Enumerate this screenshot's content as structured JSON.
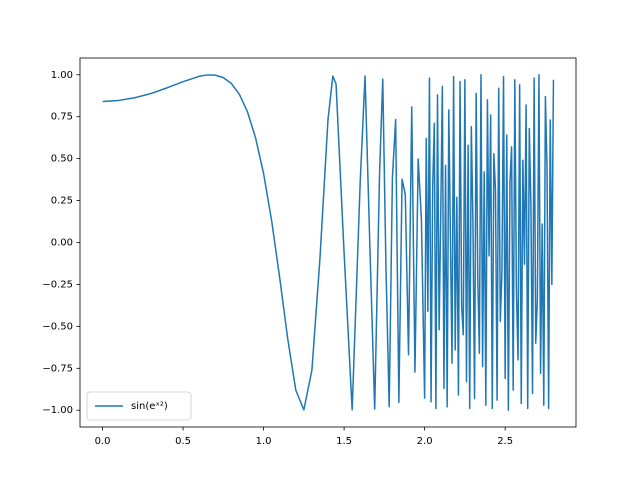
{
  "chart_data": {
    "type": "line",
    "x": [
      0,
      0.1,
      0.2,
      0.3,
      0.4,
      0.5,
      0.6,
      0.65,
      0.7,
      0.75,
      0.8,
      0.85,
      0.9,
      0.95,
      1.0,
      1.05,
      1.1,
      1.15,
      1.2,
      1.25,
      1.3,
      1.35,
      1.4,
      1.43,
      1.45,
      1.5,
      1.55,
      1.6,
      1.63,
      1.66,
      1.69,
      1.72,
      1.74,
      1.76,
      1.78,
      1.8,
      1.82,
      1.84,
      1.86,
      1.88,
      1.9,
      1.92,
      1.94,
      1.96,
      1.98,
      2.0,
      2.01,
      2.02,
      2.03,
      2.04,
      2.05,
      2.06,
      2.07,
      2.08,
      2.09,
      2.1,
      2.11,
      2.12,
      2.13,
      2.14,
      2.15,
      2.16,
      2.17,
      2.18,
      2.19,
      2.2,
      2.21,
      2.22,
      2.23,
      2.24,
      2.25,
      2.26,
      2.27,
      2.28,
      2.29,
      2.3,
      2.31,
      2.32,
      2.33,
      2.34,
      2.35,
      2.36,
      2.37,
      2.38,
      2.39,
      2.4,
      2.41,
      2.42,
      2.43,
      2.44,
      2.45,
      2.46,
      2.47,
      2.48,
      2.49,
      2.5,
      2.51,
      2.52,
      2.53,
      2.54,
      2.55,
      2.56,
      2.57,
      2.58,
      2.59,
      2.6,
      2.61,
      2.62,
      2.63,
      2.64,
      2.65,
      2.66,
      2.67,
      2.68,
      2.69,
      2.7,
      2.71,
      2.72,
      2.73,
      2.74,
      2.75,
      2.76,
      2.77,
      2.78,
      2.79,
      2.8
    ],
    "series": [
      {
        "name": "sin(eˣ²)",
        "color": "#1f77b4",
        "values": [
          0.841,
          0.847,
          0.863,
          0.888,
          0.922,
          0.959,
          0.991,
          0.999,
          0.998,
          0.983,
          0.948,
          0.883,
          0.779,
          0.625,
          0.411,
          0.13,
          -0.21,
          -0.575,
          -0.88,
          -0.998,
          -0.761,
          -0.096,
          0.734,
          0.992,
          0.945,
          -0.063,
          -0.998,
          0.362,
          0.993,
          -0.023,
          -0.993,
          0.406,
          0.974,
          -0.152,
          -0.979,
          0.39,
          0.733,
          -0.953,
          0.378,
          0.285,
          -0.669,
          0.808,
          -0.773,
          0.498,
          0.14,
          -0.928,
          0.62,
          -0.41,
          0.98,
          -0.95,
          0.33,
          0.71,
          -0.99,
          0.88,
          -0.52,
          0.15,
          0.93,
          -0.87,
          0.46,
          -0.98,
          0.79,
          0.05,
          -0.72,
          0.99,
          -0.64,
          0.27,
          -0.91,
          0.96,
          -0.38,
          -0.55,
          0.97,
          -0.83,
          0.58,
          -0.99,
          0.69,
          0.12,
          -0.93,
          0.89,
          -0.21,
          -0.66,
          1.0,
          -0.74,
          0.42,
          -0.97,
          0.85,
          -0.08,
          0.76,
          -0.99,
          0.53,
          0.31,
          -0.94,
          0.92,
          -0.47,
          -0.18,
          0.99,
          -0.81,
          0.64,
          -1.0,
          0.36,
          0.57,
          -0.88,
          0.97,
          -0.29,
          -0.7,
          0.94,
          -0.96,
          0.49,
          -0.13,
          0.82,
          -0.99,
          0.68,
          0.22,
          -0.9,
          0.98,
          -0.6,
          -0.34,
          1.0,
          -0.78,
          0.11,
          -0.97,
          0.87,
          0.45,
          -0.99,
          0.73,
          -0.25,
          0.97
        ]
      }
    ],
    "xlim": [
      -0.14,
      2.94
    ],
    "ylim": [
      -1.1,
      1.1
    ],
    "xticks": [
      {
        "value": 0,
        "label": "0.0"
      },
      0.5,
      {
        "value": 1,
        "label": "1.0"
      },
      1.5,
      {
        "value": 2,
        "label": "2.0"
      },
      2.5
    ],
    "yticks": [
      {
        "value": -1,
        "label": "−1.00"
      },
      {
        "value": -0.75,
        "label": "−0.75"
      },
      {
        "value": -0.5,
        "label": "−0.50"
      },
      {
        "value": -0.25,
        "label": "−0.25"
      },
      {
        "value": 0,
        "label": "0.00"
      },
      {
        "value": 0.25,
        "label": "0.25"
      },
      {
        "value": 0.5,
        "label": "0.50"
      },
      {
        "value": 0.75,
        "label": "0.75"
      },
      {
        "value": 1,
        "label": "1.00"
      }
    ],
    "legend": "lower left"
  }
}
